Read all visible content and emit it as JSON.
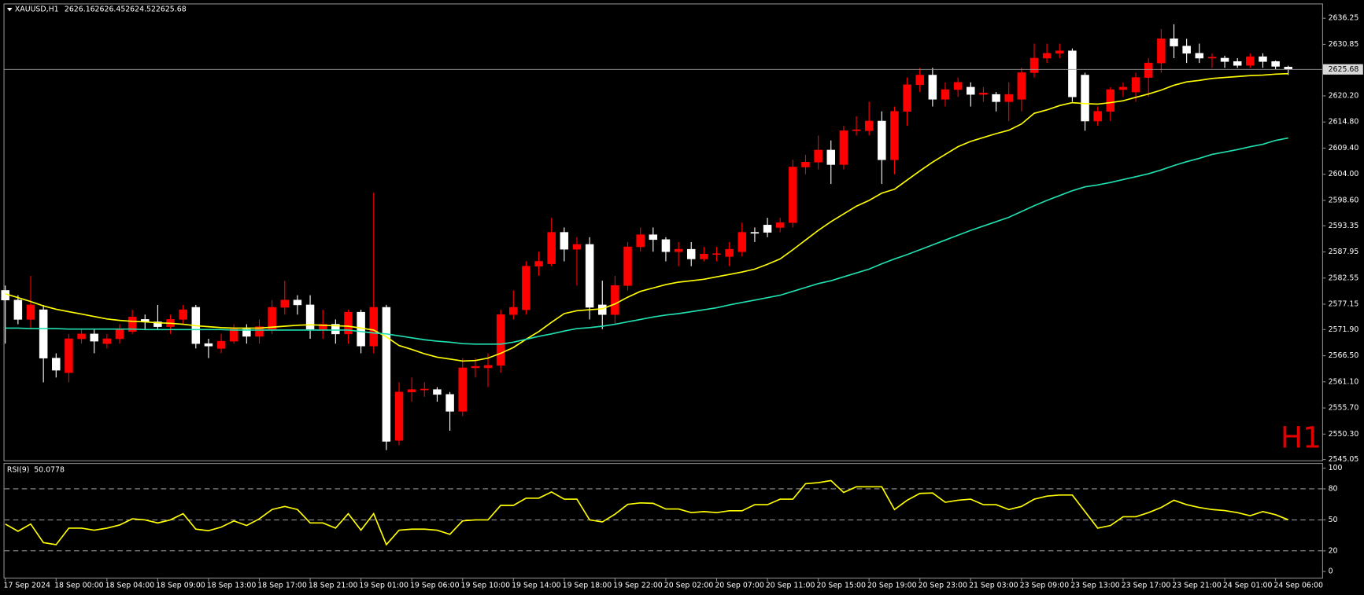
{
  "chart_data": [
    {
      "type": "candlestick",
      "title": "XAUUSD,H1",
      "timeframe_label": "H1",
      "categories": [
        "17 Sep 2024",
        null,
        null,
        null,
        "18 Sep 00:00",
        null,
        null,
        null,
        "18 Sep 04:00",
        null,
        null,
        null,
        "18 Sep 09:00",
        null,
        null,
        null,
        "18 Sep 13:00",
        null,
        null,
        null,
        "18 Sep 17:00",
        null,
        null,
        null,
        "18 Sep 21:00",
        null,
        null,
        null,
        "19 Sep 01:00",
        null,
        null,
        null,
        "19 Sep 06:00",
        null,
        null,
        null,
        "19 Sep 10:00",
        null,
        null,
        null,
        "19 Sep 14:00",
        null,
        null,
        null,
        "19 Sep 18:00",
        null,
        null,
        null,
        "19 Sep 22:00",
        null,
        null,
        null,
        "20 Sep 02:00",
        null,
        null,
        null,
        "20 Sep 07:00",
        null,
        null,
        null,
        "20 Sep 11:00",
        null,
        null,
        null,
        "20 Sep 15:00",
        null,
        null,
        null,
        "20 Sep 19:00",
        null,
        null,
        null,
        "20 Sep 23:00",
        null,
        null,
        null,
        "21 Sep 03:00",
        null,
        null,
        null,
        "23 Sep 09:00",
        null,
        null,
        null,
        "23 Sep 13:00",
        null,
        null,
        null,
        "23 Sep 17:00",
        null,
        null,
        null,
        "23 Sep 21:00",
        null,
        null,
        null,
        "24 Sep 01:00",
        null,
        null,
        null,
        "24 Sep 06:00",
        null
      ],
      "open": [
        2580,
        2578,
        2574,
        2576,
        2566,
        2563,
        2570,
        2571,
        2569,
        2570,
        2571.5,
        2574,
        2573.5,
        2572.5,
        2574,
        2576.5,
        2569,
        2568,
        2569.5,
        2572,
        2570.5,
        2572,
        2576.5,
        2578,
        2577,
        2572,
        2573,
        2571,
        2575.5,
        2568.5,
        2576.5,
        2549,
        2559,
        2559.5,
        2559.5,
        2558.5,
        2555,
        2564,
        2564,
        2564.5,
        2575,
        2576,
        2585,
        2585.5,
        2592,
        2588.5,
        2589.5,
        2577,
        2575,
        2581,
        2589,
        2591.5,
        2590.5,
        2588,
        2588.5,
        2586.5,
        2587.5,
        2587,
        2588,
        2592,
        2593.5,
        2593,
        2594,
        2605.5,
        2606.5,
        2609,
        2606,
        2613,
        2613,
        2615,
        2607,
        2617,
        2622.5,
        2624.5,
        2619.5,
        2621.5,
        2622,
        2620.5,
        2620.5,
        2619,
        2619.5,
        2625,
        2628,
        2629,
        2629.5,
        2624.5,
        2615,
        2617,
        2621.5,
        2621,
        2624,
        2627,
        2632,
        2630.5,
        2629,
        2628,
        2628,
        2627.3,
        2626.5,
        2628.3,
        2627.3,
        2626.16
      ],
      "high": [
        2581,
        2579,
        2583,
        2577,
        2567,
        2571,
        2572,
        2572,
        2571,
        2573,
        2576,
        2575,
        2577,
        2575,
        2577,
        2577,
        2570,
        2571,
        2573,
        2573,
        2574,
        2578,
        2582,
        2579,
        2579,
        2576,
        2574,
        2576,
        2576,
        2600.2,
        2577,
        2561,
        2562,
        2561,
        2560,
        2559,
        2566,
        2566,
        2567,
        2576,
        2580,
        2586,
        2588,
        2595,
        2593,
        2591,
        2591,
        2582,
        2583,
        2590,
        2593,
        2593,
        2591,
        2590,
        2590,
        2589,
        2589,
        2590,
        2594,
        2593,
        2595,
        2595,
        2607,
        2608,
        2612,
        2611,
        2614,
        2616,
        2619,
        2617,
        2618,
        2624,
        2626,
        2626,
        2623,
        2624,
        2623,
        2622,
        2621,
        2623,
        2626,
        2631,
        2631,
        2631,
        2630,
        2625,
        2618,
        2622,
        2623,
        2625,
        2628,
        2634,
        2635,
        2632,
        2631,
        2629,
        2628.5,
        2628,
        2629,
        2629,
        2627.5,
        2626.45
      ],
      "low": [
        2569,
        2573,
        2572,
        2561,
        2562,
        2561,
        2569,
        2567,
        2568,
        2569,
        2571,
        2572,
        2572,
        2571,
        2573,
        2568,
        2566,
        2567,
        2569,
        2569,
        2569,
        2571,
        2575,
        2575,
        2570,
        2570,
        2569,
        2569,
        2567,
        2567,
        2547,
        2548,
        2557,
        2558,
        2557,
        2551,
        2554,
        2562,
        2560,
        2563,
        2574,
        2575,
        2583,
        2585,
        2586,
        2581,
        2574,
        2572,
        2573,
        2580,
        2588,
        2588,
        2586,
        2585,
        2585,
        2586,
        2586,
        2585,
        2587,
        2590,
        2591,
        2592,
        2593,
        2604,
        2605,
        2602,
        2605,
        2612,
        2612,
        2602,
        2604,
        2614,
        2621,
        2618,
        2618,
        2620,
        2618,
        2619,
        2617,
        2615,
        2617,
        2624,
        2627,
        2628,
        2619,
        2613,
        2614,
        2615,
        2620,
        2619,
        2620,
        2625,
        2628,
        2627,
        2627,
        2626,
        2626,
        2626,
        2626,
        2626,
        2625.7,
        2624.52
      ],
      "close": [
        2578,
        2574,
        2577,
        2566,
        2563.5,
        2570,
        2571,
        2569.5,
        2570,
        2572,
        2574.5,
        2573.5,
        2572.5,
        2574,
        2576,
        2569,
        2568.5,
        2569.5,
        2572,
        2570.5,
        2572.5,
        2576.5,
        2578,
        2577,
        2572,
        2573,
        2571,
        2575.5,
        2568.5,
        2576.5,
        2548.8,
        2559,
        2559.5,
        2559.6,
        2558.5,
        2555,
        2564,
        2564.3,
        2564.5,
        2575,
        2576.5,
        2585,
        2586,
        2592,
        2588.5,
        2589.5,
        2576.5,
        2575,
        2581,
        2589,
        2591.5,
        2590.5,
        2588,
        2588.5,
        2586.5,
        2587.5,
        2587.6,
        2588.5,
        2592,
        2591.8,
        2592,
        2594,
        2605.5,
        2606.5,
        2609,
        2606,
        2613,
        2613.2,
        2615,
        2607,
        2617,
        2622.5,
        2624.5,
        2619.5,
        2621.5,
        2623,
        2620.5,
        2620.8,
        2619,
        2620.5,
        2625,
        2628,
        2629,
        2629.5,
        2620,
        2615,
        2617,
        2621.5,
        2622,
        2624,
        2627,
        2632,
        2630.5,
        2629,
        2628,
        2628.2,
        2627.3,
        2626.5,
        2628.3,
        2627.3,
        2626.3,
        2625.68
      ],
      "up_color": "#ff0000",
      "down_color": "#ffffff",
      "overlays": [
        {
          "color": "#ffff00",
          "values": [
            2579.3,
            2578.5,
            2577.7,
            2576.8,
            2576.1,
            2575.6,
            2575.1,
            2574.6,
            2574.1,
            2573.8,
            2573.6,
            2573.5,
            2573.3,
            2573.2,
            2573.0,
            2572.7,
            2572.5,
            2572.3,
            2572.2,
            2572.2,
            2572.2,
            2572.4,
            2572.6,
            2572.8,
            2572.9,
            2572.8,
            2572.7,
            2572.6,
            2572.2,
            2571.8,
            2570.4,
            2568.6,
            2567.8,
            2566.9,
            2566.2,
            2565.8,
            2565.4,
            2565.5,
            2566.0,
            2567.0,
            2568.2,
            2569.9,
            2571.5,
            2573.4,
            2575.2,
            2575.8,
            2576.0,
            2576.2,
            2577.2,
            2578.6,
            2579.8,
            2580.5,
            2581.2,
            2581.7,
            2582.0,
            2582.3,
            2582.8,
            2583.3,
            2583.8,
            2584.4,
            2585.4,
            2586.5,
            2588.4,
            2590.4,
            2592.4,
            2594.2,
            2595.8,
            2597.4,
            2598.6,
            2600.1,
            2600.9,
            2602.8,
            2604.7,
            2606.5,
            2608.1,
            2609.7,
            2610.8,
            2611.6,
            2612.4,
            2613.1,
            2614.4,
            2616.6,
            2617.3,
            2618.2,
            2618.8,
            2618.6,
            2618.5,
            2618.8,
            2619.2,
            2619.9,
            2620.6,
            2621.4,
            2622.4,
            2623.1,
            2623.4,
            2623.8,
            2624.0,
            2624.2,
            2624.4,
            2624.5,
            2624.7,
            2624.8
          ]
        },
        {
          "color": "#20e0b0",
          "values": [
            2572.2,
            2572.2,
            2572.1,
            2572.1,
            2572.1,
            2572.0,
            2572.0,
            2572.0,
            2572.0,
            2572.0,
            2572.0,
            2571.9,
            2571.9,
            2571.9,
            2571.9,
            2571.9,
            2571.9,
            2571.9,
            2571.8,
            2571.8,
            2571.8,
            2571.8,
            2571.8,
            2571.8,
            2571.8,
            2571.8,
            2571.8,
            2571.8,
            2571.5,
            2571.2,
            2571.0,
            2570.6,
            2570.2,
            2569.8,
            2569.5,
            2569.3,
            2569.0,
            2568.9,
            2568.9,
            2568.9,
            2569.3,
            2569.9,
            2570.5,
            2571.0,
            2571.6,
            2572.1,
            2572.3,
            2572.6,
            2573.0,
            2573.5,
            2574.0,
            2574.5,
            2574.9,
            2575.2,
            2575.6,
            2576.0,
            2576.4,
            2577.0,
            2577.5,
            2578.0,
            2578.5,
            2579.0,
            2579.8,
            2580.6,
            2581.4,
            2582.0,
            2582.8,
            2583.6,
            2584.4,
            2585.5,
            2586.5,
            2587.4,
            2588.4,
            2589.4,
            2590.4,
            2591.4,
            2592.4,
            2593.3,
            2594.2,
            2595.1,
            2596.3,
            2597.5,
            2598.6,
            2599.6,
            2600.6,
            2601.4,
            2601.8,
            2602.3,
            2602.9,
            2603.5,
            2604.1,
            2604.9,
            2605.8,
            2606.6,
            2607.3,
            2608.1,
            2608.6,
            2609.1,
            2609.7,
            2610.2,
            2611.0,
            2611.5
          ]
        }
      ],
      "ylim": [
        2544.87,
        2639.3
      ],
      "yticks": [
        2636.25,
        2630.85,
        {
          "value": 2620.2,
          "label": "2620.20"
        },
        {
          "value": 2614.8,
          "label": "2614.80"
        },
        {
          "value": 2609.4,
          "label": "2609.40"
        },
        {
          "value": 2604,
          "label": "2604.00"
        },
        {
          "value": 2598.6,
          "label": "2598.60"
        },
        2593.35,
        2587.95,
        2582.55,
        2577.15,
        {
          "value": 2571.9,
          "label": "2571.90"
        },
        {
          "value": 2566.5,
          "label": "2566.50"
        },
        {
          "value": 2561.1,
          "label": "2561.10"
        },
        {
          "value": 2555.7,
          "label": "2555.70"
        },
        {
          "value": 2550.3,
          "label": "2550.30"
        },
        2545.05
      ]
    },
    {
      "type": "line",
      "title": "RSI(9)",
      "color": "#ffff00",
      "values": [
        46,
        39,
        46,
        28,
        26,
        42,
        42,
        40,
        42,
        45,
        51,
        50,
        47,
        50,
        56,
        41,
        39.5,
        43,
        49,
        44.5,
        51,
        60,
        63,
        60,
        47,
        47,
        42,
        56,
        40,
        56,
        26,
        40,
        41,
        41,
        40,
        36,
        49,
        50,
        50,
        64,
        64,
        71,
        71,
        77,
        70,
        70,
        50,
        48,
        55.5,
        65,
        66.4,
        66,
        60.5,
        60.5,
        57,
        58,
        57,
        58.8,
        58.8,
        64.7,
        64.7,
        70,
        70,
        85,
        86,
        88,
        76.5,
        82,
        82,
        82,
        60,
        69,
        75.6,
        76,
        67,
        69,
        70,
        64.7,
        64.7,
        60,
        63,
        70,
        73,
        74,
        74,
        58,
        42,
        44.5,
        53,
        53,
        57,
        62,
        69,
        64.7,
        62,
        60,
        59,
        57,
        54,
        58,
        55,
        50.0778
      ],
      "ylim": [
        0,
        100
      ],
      "yticks": [
        100,
        80,
        50,
        20,
        0
      ]
    }
  ]
}
